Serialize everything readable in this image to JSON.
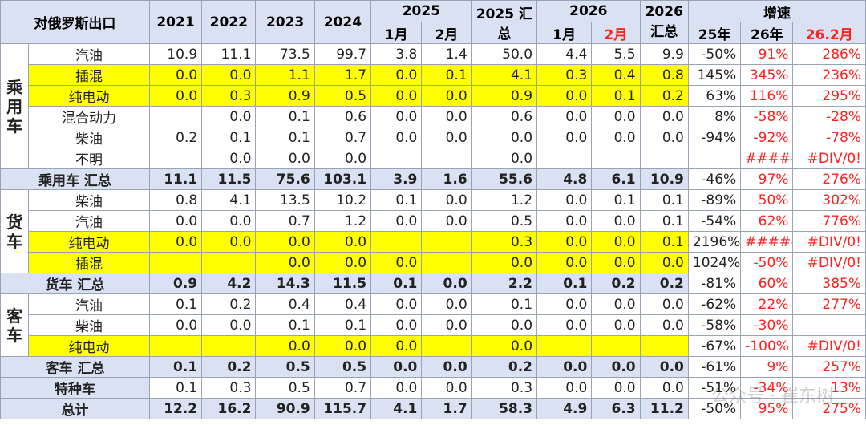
{
  "header": {
    "title": "对俄罗斯出口",
    "years": [
      "2021",
      "2022",
      "2023",
      "2024"
    ],
    "y2025": "2025",
    "months2025": [
      "1月",
      "2月"
    ],
    "total2025": "2025 汇总",
    "y2026": "2026",
    "months2026": [
      "1月",
      "2月"
    ],
    "total2026": "2026 汇总",
    "growth": "增速",
    "growth_cols": [
      "25年",
      "26年",
      "26.2月"
    ]
  },
  "groups": [
    {
      "name": "乘用车",
      "rows": [
        {
          "label": "汽油",
          "highlight": false,
          "values": [
            "10.9",
            "11.1",
            "73.5",
            "99.7",
            "3.8",
            "1.4",
            "50.0",
            "4.4",
            "5.5",
            "9.9",
            "-50%",
            "91%",
            "286%"
          ]
        },
        {
          "label": "插混",
          "highlight": true,
          "values": [
            "0.0",
            "0.0",
            "1.1",
            "1.7",
            "0.0",
            "0.1",
            "4.1",
            "0.3",
            "0.4",
            "0.8",
            "145%",
            "345%",
            "236%"
          ]
        },
        {
          "label": "纯电动",
          "highlight": true,
          "values": [
            "0.0",
            "0.3",
            "0.9",
            "0.5",
            "0.0",
            "0.0",
            "0.9",
            "0.0",
            "0.1",
            "0.2",
            "63%",
            "116%",
            "295%"
          ]
        },
        {
          "label": "混合动力",
          "highlight": false,
          "values": [
            null,
            "0.0",
            "0.1",
            "0.6",
            "0.0",
            "0.0",
            "0.6",
            "0.0",
            "0.0",
            "0.0",
            "8%",
            "-58%",
            "-28%"
          ]
        },
        {
          "label": "柴油",
          "highlight": false,
          "values": [
            "0.2",
            "0.1",
            "0.1",
            "0.7",
            "0.0",
            "0.0",
            "0.0",
            "0.0",
            "0.0",
            "0.0",
            "-94%",
            "-92%",
            "-78%"
          ]
        },
        {
          "label": "不明",
          "highlight": false,
          "values": [
            null,
            "0.0",
            "0.0",
            "0.0",
            null,
            null,
            "0.0",
            null,
            null,
            null,
            null,
            "#####",
            "#DIV/0!"
          ]
        }
      ],
      "total": {
        "label": "乘用车 汇总",
        "values": [
          "11.1",
          "11.5",
          "75.6",
          "103.1",
          "3.9",
          "1.6",
          "55.6",
          "4.8",
          "6.1",
          "10.9",
          "-46%",
          "97%",
          "276%"
        ]
      }
    },
    {
      "name": "货车",
      "rows": [
        {
          "label": "柴油",
          "highlight": false,
          "values": [
            "0.8",
            "4.1",
            "13.5",
            "10.2",
            "0.1",
            "0.0",
            "1.2",
            "0.0",
            "0.1",
            "0.1",
            "-89%",
            "50%",
            "302%"
          ]
        },
        {
          "label": "汽油",
          "highlight": false,
          "values": [
            "0.0",
            "0.0",
            "0.7",
            "1.2",
            "0.0",
            "0.0",
            "0.5",
            "0.0",
            "0.0",
            "0.1",
            "-54%",
            "62%",
            "776%"
          ]
        },
        {
          "label": "纯电动",
          "highlight": true,
          "values": [
            "0.0",
            "0.0",
            "0.0",
            "0.0",
            null,
            null,
            "0.3",
            "0.0",
            "0.0",
            "0.1",
            "2196%",
            "#####",
            "#DIV/0!"
          ]
        },
        {
          "label": "插混",
          "highlight": true,
          "values": [
            null,
            null,
            "0.0",
            "0.0",
            "0.0",
            null,
            "0.0",
            "0.0",
            "0.0",
            "0.0",
            "1024%",
            "-50%",
            "#DIV/0!"
          ]
        }
      ],
      "total": {
        "label": "货车 汇总",
        "values": [
          "0.9",
          "4.2",
          "14.3",
          "11.5",
          "0.1",
          "0.0",
          "2.2",
          "0.1",
          "0.2",
          "0.2",
          "-81%",
          "60%",
          "385%"
        ]
      }
    },
    {
      "name": "客车",
      "rows": [
        {
          "label": "汽油",
          "highlight": false,
          "values": [
            "0.1",
            "0.2",
            "0.4",
            "0.4",
            "0.0",
            "0.0",
            "0.1",
            "0.0",
            "0.0",
            "0.0",
            "-62%",
            "22%",
            "277%"
          ]
        },
        {
          "label": "柴油",
          "highlight": false,
          "values": [
            "0.0",
            "0.0",
            "0.1",
            "0.1",
            "0.0",
            "0.0",
            "0.0",
            "0.0",
            "0.0",
            "0.0",
            "-58%",
            "-30%",
            null
          ]
        },
        {
          "label": "纯电动",
          "highlight": true,
          "values": [
            null,
            null,
            "0.0",
            "0.0",
            "0.0",
            null,
            "0.0",
            null,
            null,
            null,
            "-67%",
            "-100%",
            "#DIV/0!"
          ]
        }
      ],
      "total": {
        "label": "客车 汇总",
        "values": [
          "0.1",
          "0.2",
          "0.5",
          "0.5",
          "0.0",
          "0.0",
          "0.2",
          "0.0",
          "0.0",
          "0.0",
          "-61%",
          "9%",
          "257%"
        ]
      }
    }
  ],
  "other_rows": [
    {
      "label": "特种车",
      "bold": false,
      "values": [
        "0.1",
        "0.3",
        "0.5",
        "0.7",
        "0.0",
        "0.0",
        "0.3",
        "0.0",
        "0.0",
        "0.0",
        "-51%",
        "-34%",
        "13%"
      ]
    },
    {
      "label": "总计",
      "bold": true,
      "values": [
        "12.2",
        "16.2",
        "90.9",
        "115.7",
        "4.1",
        "1.7",
        "58.3",
        "4.9",
        "6.3",
        "11.2",
        "-50%",
        "95%",
        "275%"
      ]
    }
  ],
  "watermark": "公众号 · 崔东树"
}
